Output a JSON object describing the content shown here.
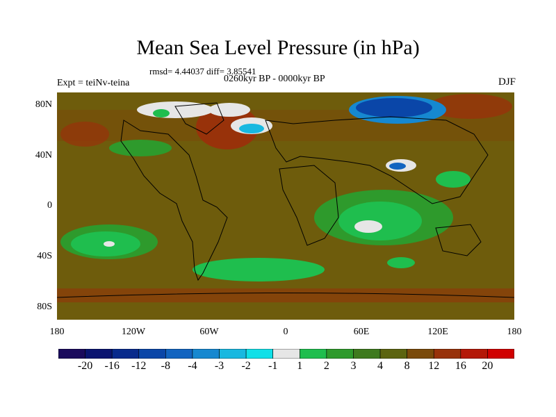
{
  "title": "Mean Sea Level Pressure (in hPa)",
  "stats": "rmsd= 4.44037 diff= 3.85541",
  "period": "0260kyr BP - 0000kyr BP",
  "experiment": "Expt = teiNv-teina",
  "season": "DJF",
  "lat_labels": [
    "80N",
    "40N",
    "0",
    "40S",
    "80S"
  ],
  "lon_labels": [
    "180",
    "120W",
    "60W",
    "0",
    "60E",
    "120E",
    "180"
  ],
  "legend": {
    "colors": [
      "#1a0a5c",
      "#0a1470",
      "#082a8c",
      "#0a46a8",
      "#1264c0",
      "#1688d0",
      "#18b8e0",
      "#10e0e8",
      "#e6e6e6",
      "#1fbe4e",
      "#2e9a2c",
      "#3e7a1e",
      "#5c6410",
      "#7a4a0a",
      "#98320a",
      "#b41808",
      "#d00000"
    ],
    "labels": [
      "-20",
      "-16",
      "-12",
      "-8",
      "-4",
      "-3",
      "-2",
      "-1",
      "1",
      "2",
      "3",
      "4",
      "8",
      "12",
      "16",
      "20"
    ]
  },
  "colors": {
    "brown": "#6e5c0c",
    "land": "#5e6212",
    "green_mid": "#2e9a2c",
    "green": "#1fbe4e",
    "red_brown": "#98320a",
    "blue": "#0a46a8",
    "cyan": "#18b8e0",
    "white": "#e6e6e6"
  }
}
